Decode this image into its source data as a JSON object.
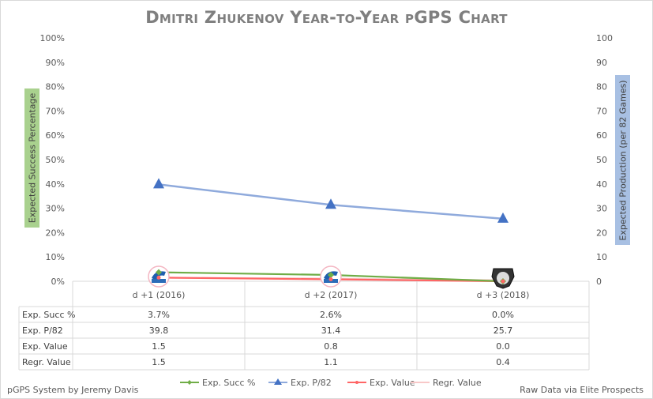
{
  "chart_data": {
    "type": "line",
    "title": "Dmitri Zhukenov Year-to-Year pGPS Chart",
    "categories": [
      "d +1 (2016)",
      "d +2 (2017)",
      "d +3 (2018)"
    ],
    "ylabel_left": "Expected Success Percentage",
    "ylabel_right": "Expected Production (per 82 Games)",
    "yticks_left": [
      "0%",
      "10%",
      "20%",
      "30%",
      "40%",
      "50%",
      "60%",
      "70%",
      "80%",
      "90%",
      "100%"
    ],
    "yticks_right": [
      "0",
      "10",
      "20",
      "30",
      "40",
      "50",
      "60",
      "70",
      "80",
      "90",
      "100"
    ],
    "ylim_left": [
      0,
      100
    ],
    "ylim_right": [
      0,
      100
    ],
    "grid": false,
    "legend_position": "bottom",
    "series": [
      {
        "name": "Exp. Succ %",
        "axis": "left",
        "values": [
          3.7,
          2.6,
          0.0
        ],
        "display": [
          "3.7%",
          "2.6%",
          "0.0%"
        ],
        "color": "#70ad47",
        "marker": "diamond"
      },
      {
        "name": "Exp. P/82",
        "axis": "right",
        "values": [
          39.8,
          31.4,
          25.7
        ],
        "display": [
          "39.8",
          "31.4",
          "25.7"
        ],
        "color": "#4472c4",
        "line_color": "#8faadc",
        "marker": "triangle"
      },
      {
        "name": "Exp. Value",
        "axis": "right",
        "values": [
          1.5,
          0.8,
          0.0
        ],
        "display": [
          "1.5",
          "0.8",
          "0.0"
        ],
        "color": "#ff6666",
        "marker": "star"
      },
      {
        "name": "Regr. Value",
        "axis": "right",
        "values": [
          1.5,
          1.1,
          0.4
        ],
        "display": [
          "1.5",
          "1.1",
          "0.4"
        ],
        "color": "#f8c8c8",
        "marker": "none"
      }
    ],
    "table_labels": [
      "Exp. Succ %",
      "Exp. P/82",
      "Exp. Value",
      "Regr. Value"
    ],
    "team_logos": [
      "QMJHL",
      "QMJHL",
      "KHL"
    ]
  },
  "footer": {
    "left": "pGPS System by Jeremy Davis",
    "right": "Raw Data via Elite Prospects"
  }
}
